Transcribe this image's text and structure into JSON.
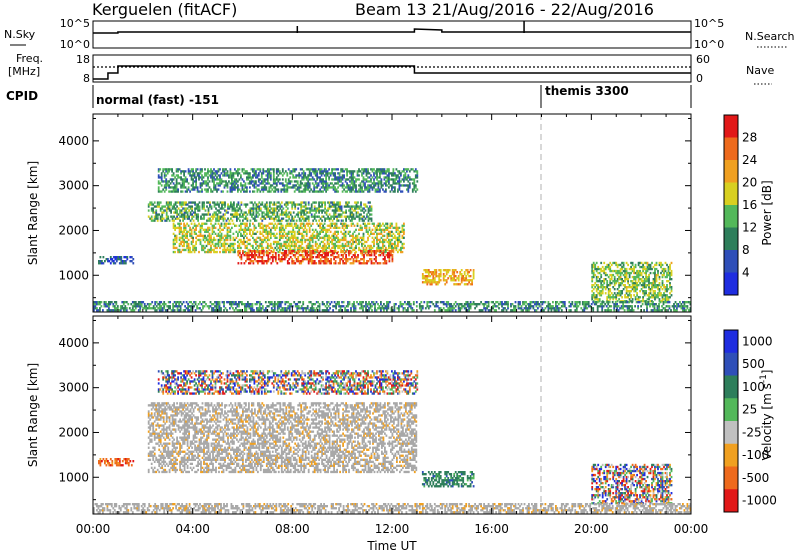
{
  "header": {
    "station": "Kerguelen (fitACF)",
    "beam_info": "Beam 13 21/Aug/2016 - 22/Aug/2016"
  },
  "status_panels": {
    "nsky_label": "N.Sky",
    "nsearch_label": "N.Search",
    "nsky_ticks": [
      "10^5",
      "10^0"
    ],
    "nsearch_ticks": [
      "10^5",
      "10^0"
    ],
    "freq_label_line1": "Freq.",
    "freq_label_line2": "[MHz]",
    "freq_ticks": [
      "18",
      "8"
    ],
    "nave_label": "Nave",
    "nave_ticks": [
      "60",
      "0"
    ],
    "cpid_label": "CPID",
    "cpid_segments": [
      {
        "label": "normal (fast) -151",
        "start_hour": 0
      },
      {
        "label": "themis 3300",
        "start_hour": 18
      }
    ]
  },
  "colors": {
    "power_scale": [
      "#1f2de0",
      "#2f4fb8",
      "#2e7e5b",
      "#53b85a",
      "#d8d020",
      "#f0a020",
      "#ee6a1c",
      "#e21818"
    ],
    "velocity_scale": [
      "#1f2de0",
      "#2f4fb8",
      "#2e7e5b",
      "#53b85a",
      "#c0c0c0",
      "#f0a020",
      "#ee6a1c",
      "#e21818"
    ],
    "ground_scatter": "#a8a8a8"
  },
  "chart_data": [
    {
      "type": "heatmap",
      "panel": "power",
      "xlabel": "",
      "ylabel": "Slant Range [km]",
      "xlim_hours": [
        0,
        24
      ],
      "ylim": [
        180,
        4600
      ],
      "yticks": [
        1000,
        2000,
        3000,
        4000
      ],
      "xtick_labels": [
        "00:00",
        "04:00",
        "08:00",
        "12:00",
        "16:00",
        "20:00",
        "00:00"
      ],
      "colorbar_label": "Power [dB]",
      "colorbar_ticks": [
        "28",
        "24",
        "20",
        "16",
        "12",
        "8",
        "4"
      ],
      "colorbar_range": [
        0,
        30
      ],
      "regions": [
        {
          "t": [
            2.6,
            13.0
          ],
          "r": [
            2850,
            3350
          ],
          "value": 10
        },
        {
          "t": [
            2.2,
            11.2
          ],
          "r": [
            2200,
            2650
          ],
          "value": 12
        },
        {
          "t": [
            3.2,
            12.5
          ],
          "r": [
            1500,
            2150
          ],
          "value": 16
        },
        {
          "t": [
            5.8,
            12.0
          ],
          "r": [
            1250,
            1550
          ],
          "value": 26
        },
        {
          "t": [
            0.2,
            1.6
          ],
          "r": [
            1250,
            1400
          ],
          "value": 6
        },
        {
          "t": [
            13.2,
            15.3
          ],
          "r": [
            780,
            1100
          ],
          "value": 20
        },
        {
          "t": [
            20.0,
            23.2
          ],
          "r": [
            400,
            1300
          ],
          "value": 14
        },
        {
          "t": [
            0.0,
            24.0
          ],
          "r": [
            200,
            420
          ],
          "value": 10
        }
      ]
    },
    {
      "type": "heatmap",
      "panel": "velocity",
      "xlabel": "Time UT",
      "ylabel": "Slant Range [km]",
      "xlim_hours": [
        0,
        24
      ],
      "ylim": [
        180,
        4600
      ],
      "yticks": [
        1000,
        2000,
        3000,
        4000
      ],
      "xtick_labels": [
        "00:00",
        "04:00",
        "08:00",
        "12:00",
        "16:00",
        "20:00",
        "00:00"
      ],
      "colorbar_label": "Velocity [m s^-1]",
      "colorbar_ticks": [
        "1000",
        "500",
        "100",
        "25",
        "-25",
        "-100",
        "-500",
        "-1000"
      ],
      "regions": [
        {
          "t": [
            2.6,
            13.0
          ],
          "r": [
            2850,
            3350
          ],
          "value": "mixed"
        },
        {
          "t": [
            2.2,
            13.0
          ],
          "r": [
            1100,
            2650
          ],
          "value": "ground"
        },
        {
          "t": [
            0.2,
            1.6
          ],
          "r": [
            1250,
            1400
          ],
          "value": -100
        },
        {
          "t": [
            13.2,
            15.3
          ],
          "r": [
            780,
            1100
          ],
          "value": 100
        },
        {
          "t": [
            20.0,
            23.2
          ],
          "r": [
            400,
            1300
          ],
          "value": "mixed"
        },
        {
          "t": [
            0.0,
            24.0
          ],
          "r": [
            200,
            420
          ],
          "value": "ground"
        }
      ]
    }
  ]
}
